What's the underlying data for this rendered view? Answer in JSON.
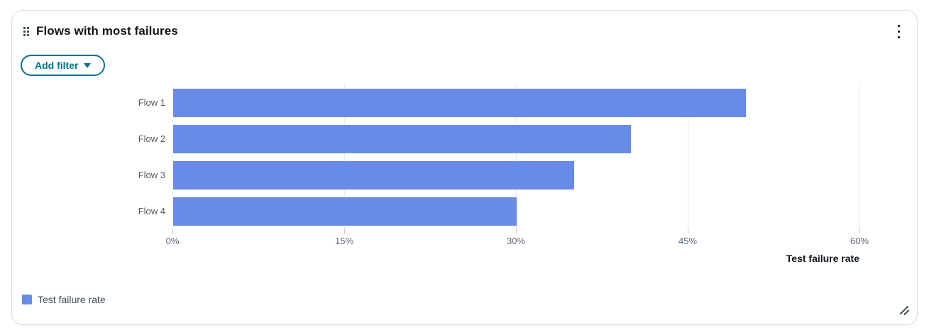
{
  "card": {
    "title": "Flows with most failures",
    "filter_button": {
      "label": "Add filter",
      "icon": "caret-down-icon"
    },
    "header_icons": {
      "left": "drag-handle-icon",
      "right": "ellipsis-vertical-icon"
    },
    "resize_icon": "resize-handle-icon"
  },
  "chart_data": {
    "type": "bar",
    "orientation": "horizontal",
    "title": "Flows with most failures",
    "categories": [
      "Flow 1",
      "Flow 2",
      "Flow 3",
      "Flow 4"
    ],
    "series": [
      {
        "name": "Test failure rate",
        "values": [
          50,
          40,
          35,
          30
        ]
      }
    ],
    "xlabel": "Test failure rate",
    "ylabel": "",
    "xlim": [
      0,
      60
    ],
    "x_ticks": [
      "0%",
      "15%",
      "30%",
      "45%",
      "60%"
    ],
    "x_tick_values": [
      0,
      15,
      30,
      45,
      60
    ],
    "grid": true,
    "legend": {
      "position": "bottom-left",
      "entries": [
        {
          "label": "Test failure rate",
          "color": "#688ae8"
        }
      ]
    }
  },
  "colors": {
    "accent": "#067390",
    "bar": "#688ae8",
    "title_text": "#0f141a",
    "axis_text": "#5f6b7a",
    "category_text": "#545b64",
    "gridline": "#e9ebed",
    "tick": "#c1c7cd",
    "card_border": "#d9dde2"
  }
}
